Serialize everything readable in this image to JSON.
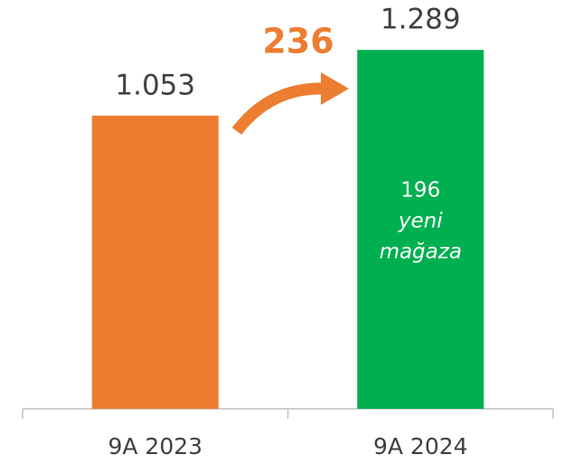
{
  "chart_data": {
    "type": "bar",
    "categories": [
      "9A 2023",
      "9A 2024"
    ],
    "values": [
      1053,
      1289
    ],
    "value_labels": [
      "1.053",
      "1.289"
    ],
    "colors": [
      "#ED7D31",
      "#00B050"
    ],
    "ylim": [
      0,
      1400
    ],
    "annotations": [
      {
        "text": "236",
        "color": "#ED7D31"
      },
      {
        "lines": [
          "196",
          "yeni",
          "mağaza"
        ]
      }
    ]
  }
}
